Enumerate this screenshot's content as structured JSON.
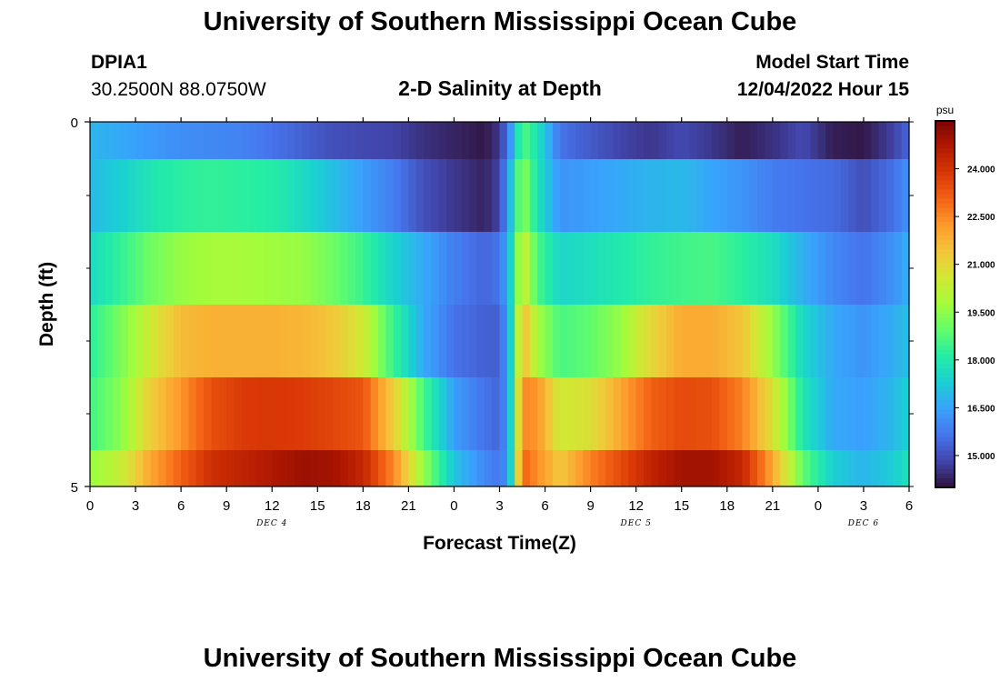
{
  "title": "University of Southern Mississippi Ocean Cube",
  "title_bottom": "University of Southern Mississippi Ocean Cube",
  "station": {
    "id": "DPIA1",
    "coords": "30.2500N  88.0750W"
  },
  "plot_title": "2-D Salinity at Depth",
  "model_start": {
    "label": "Model Start Time",
    "value": "12/04/2022 Hour 15"
  },
  "chart_data": {
    "type": "heatmap",
    "title": "2-D Salinity at Depth",
    "xlabel": "Forecast Time(Z)",
    "ylabel": "Depth (ft)",
    "x_hours_range": [
      0,
      54
    ],
    "x_tick_hours": [
      0,
      3,
      6,
      9,
      12,
      15,
      18,
      21,
      24,
      27,
      30,
      33,
      36,
      39,
      42,
      45,
      48,
      51,
      54
    ],
    "x_tick_labels": [
      "0",
      "3",
      "6",
      "9",
      "12",
      "15",
      "18",
      "21",
      "0",
      "3",
      "6",
      "9",
      "12",
      "15",
      "18",
      "21",
      "0",
      "3",
      "6"
    ],
    "date_labels": [
      {
        "hour": 12,
        "text": "DEC 4"
      },
      {
        "hour": 36,
        "text": "DEC 5"
      },
      {
        "hour": 51,
        "text": "DEC 6"
      }
    ],
    "y_range": [
      0,
      5
    ],
    "y_tick_labels": [
      "0",
      "5"
    ],
    "layer_depths_ft": [
      0.25,
      1.25,
      2.25,
      3.25,
      4.25,
      5.0
    ],
    "colorbar": {
      "unit": "psu",
      "vmin": 14.0,
      "vmax": 25.5,
      "ticks": [
        "24.000",
        "22.500",
        "21.000",
        "19.500",
        "18.000",
        "16.500",
        "15.000"
      ],
      "tick_values": [
        24.0,
        22.5,
        21.0,
        19.5,
        18.0,
        16.5,
        15.0
      ],
      "colors": [
        "#30123b",
        "#4145ab",
        "#4675ed",
        "#39a2fc",
        "#1bcfd4",
        "#24eca6",
        "#61fc6c",
        "#a4fc3b",
        "#d1e834",
        "#f3c63a",
        "#fe9b2d",
        "#f36315",
        "#d93806",
        "#b11901",
        "#7a0402"
      ]
    },
    "time_keys_hours": [
      0,
      2,
      4,
      6,
      8,
      10,
      12,
      14,
      16,
      18,
      20,
      22,
      24,
      26,
      27,
      27.6,
      28.5,
      29.5,
      31,
      33,
      35,
      37,
      39,
      41,
      43,
      45,
      47,
      49,
      51,
      53,
      54
    ],
    "salinity_profiles": [
      {
        "depth": "0.0-0.5 ft",
        "values": [
          16.8,
          16.6,
          16.3,
          16.1,
          16.0,
          15.9,
          15.6,
          15.3,
          15.0,
          14.9,
          14.8,
          14.5,
          14.3,
          14.1,
          14.6,
          15.8,
          18.8,
          17.8,
          15.6,
          15.2,
          14.8,
          14.6,
          14.9,
          14.6,
          14.2,
          14.5,
          14.9,
          14.2,
          14.1,
          14.8,
          15.4
        ]
      },
      {
        "depth": "0.5-1.5 ft",
        "values": [
          16.9,
          17.3,
          17.9,
          18.2,
          18.3,
          18.2,
          18.1,
          17.6,
          17.0,
          16.4,
          15.8,
          15.0,
          14.6,
          14.3,
          14.8,
          16.5,
          19.6,
          17.8,
          16.2,
          16.4,
          16.6,
          16.8,
          16.9,
          16.5,
          16.2,
          15.8,
          15.6,
          15.5,
          15.0,
          15.6,
          16.2
        ]
      },
      {
        "depth": "1.5-2.5 ft",
        "values": [
          17.6,
          18.3,
          19.1,
          19.6,
          19.8,
          19.8,
          19.7,
          19.6,
          19.1,
          18.4,
          17.4,
          16.6,
          15.8,
          15.4,
          15.6,
          16.8,
          20.6,
          18.6,
          17.5,
          17.7,
          18.0,
          18.3,
          18.5,
          18.6,
          18.2,
          17.7,
          16.7,
          16.0,
          15.6,
          16.2,
          16.7
        ]
      },
      {
        "depth": "2.5-3.5 ft",
        "values": [
          18.2,
          19.2,
          20.5,
          21.6,
          21.8,
          21.8,
          21.8,
          21.7,
          21.4,
          20.5,
          18.4,
          16.6,
          15.6,
          15.3,
          15.3,
          16.5,
          21.7,
          19.8,
          18.6,
          18.9,
          19.6,
          21.0,
          21.9,
          21.9,
          21.4,
          19.6,
          17.5,
          16.6,
          16.2,
          16.7,
          17.0
        ]
      },
      {
        "depth": "3.5-4.5 ft",
        "values": [
          18.5,
          19.4,
          21.2,
          22.3,
          23.4,
          23.8,
          23.9,
          23.8,
          23.6,
          23.3,
          21.2,
          18.6,
          16.4,
          15.6,
          15.4,
          16.4,
          22.5,
          22.3,
          20.5,
          20.8,
          22.0,
          23.1,
          23.5,
          23.4,
          22.6,
          20.8,
          17.9,
          16.6,
          16.4,
          16.9,
          17.4
        ]
      },
      {
        "depth": "4.5-5.0 ft",
        "values": [
          19.6,
          20.3,
          22.0,
          23.1,
          24.1,
          24.4,
          24.7,
          25.0,
          24.9,
          24.3,
          22.5,
          19.6,
          17.1,
          16.0,
          15.7,
          16.2,
          23.1,
          22.4,
          21.3,
          22.6,
          23.5,
          24.4,
          24.9,
          24.9,
          24.3,
          22.0,
          18.9,
          17.3,
          16.8,
          17.3,
          17.8
        ]
      }
    ]
  }
}
